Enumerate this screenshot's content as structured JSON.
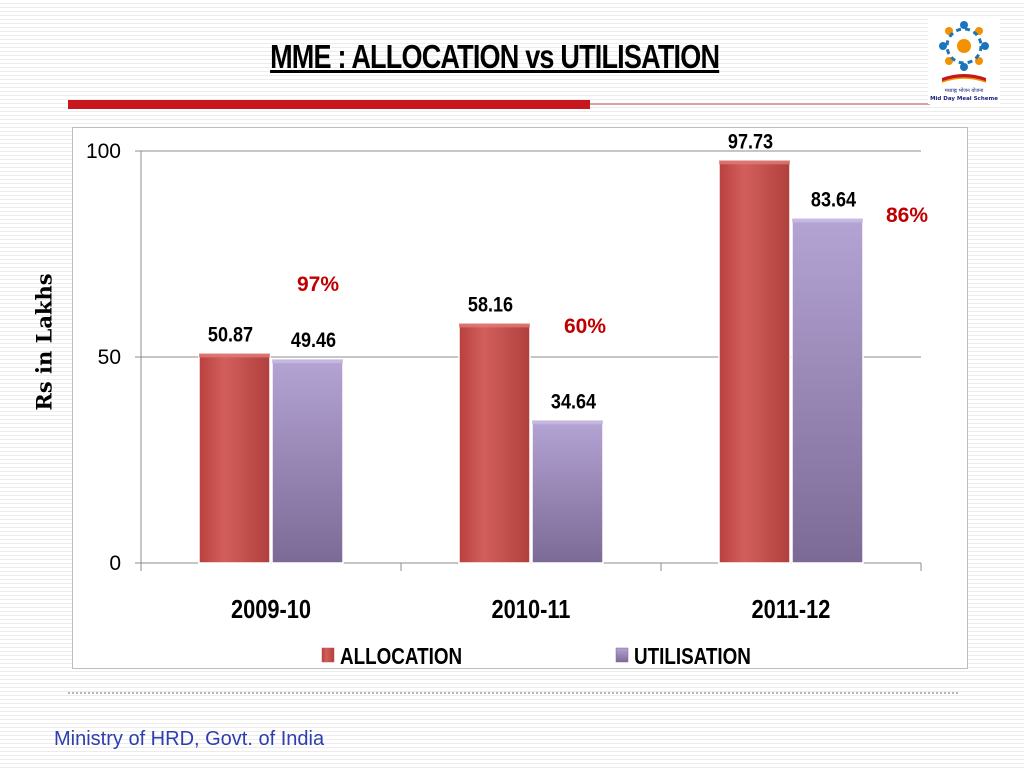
{
  "slide": {
    "title": "MME : ALLOCATION vs UTILISATION",
    "footer": "Ministry of HRD, Govt. of India",
    "logo_icon": "mid-day-meal-logo-icon",
    "logo_text_hindi": "मध्याह्न भोजन योजना",
    "logo_text": "Mid Day Meal Scheme"
  },
  "colors": {
    "allocation": "#c0504d",
    "utilisation": "#8064a2",
    "percent_label": "#c00000",
    "accent_rule": "#c8161d",
    "footer_text": "#2e3eb0"
  },
  "chart_data": {
    "type": "bar",
    "title": "",
    "xlabel": "",
    "ylabel": "Rs in Lakhs",
    "ylim": [
      0,
      100
    ],
    "yticks": [
      0,
      50,
      100
    ],
    "grid": true,
    "legend_position": "bottom",
    "categories": [
      "2009-10",
      "2010-11",
      "2011-12"
    ],
    "series": [
      {
        "name": "ALLOCATION",
        "values": [
          50.87,
          58.16,
          97.73
        ]
      },
      {
        "name": "UTILISATION",
        "values": [
          49.46,
          34.64,
          83.64
        ]
      }
    ],
    "annotations": [
      "97%",
      "60%",
      "86%"
    ]
  }
}
